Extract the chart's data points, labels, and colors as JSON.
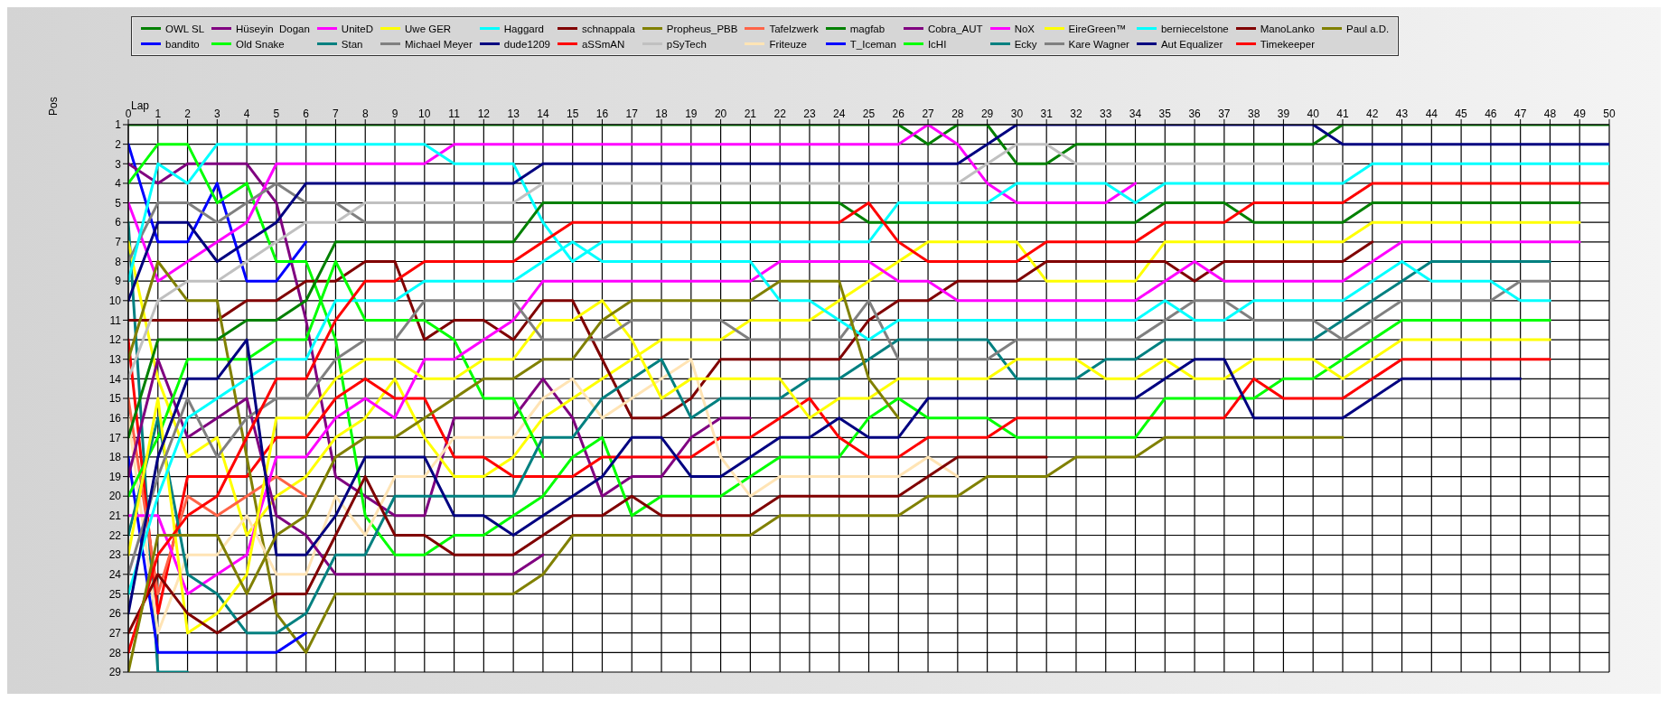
{
  "chart_data": {
    "type": "line",
    "xlabel": "Lap",
    "ylabel": "Pos",
    "legend": "top",
    "grid": true,
    "line_style": "solid",
    "x": [
      0,
      1,
      2,
      3,
      4,
      5,
      6,
      7,
      8,
      9,
      10,
      11,
      12,
      13,
      14,
      15,
      16,
      17,
      18,
      19,
      20,
      21,
      22,
      23,
      24,
      25,
      26,
      27,
      28,
      29,
      30,
      31,
      32,
      33,
      34,
      35,
      36,
      37,
      38,
      39,
      40,
      41,
      42,
      43,
      44,
      45,
      46,
      47,
      48,
      49,
      50
    ],
    "xlim": [
      0,
      50
    ],
    "xticks": [
      0,
      1,
      2,
      3,
      4,
      5,
      6,
      7,
      8,
      9,
      10,
      11,
      12,
      13,
      14,
      15,
      16,
      17,
      18,
      19,
      20,
      21,
      22,
      23,
      24,
      25,
      26,
      27,
      28,
      29,
      30,
      31,
      32,
      33,
      34,
      35,
      36,
      37,
      38,
      39,
      40,
      41,
      42,
      43,
      44,
      45,
      46,
      47,
      48,
      49,
      50
    ],
    "ylim": [
      29,
      1
    ],
    "yticks": [
      1,
      2,
      3,
      4,
      5,
      6,
      7,
      8,
      9,
      10,
      11,
      12,
      13,
      14,
      15,
      16,
      17,
      18,
      19,
      20,
      21,
      22,
      23,
      24,
      25,
      26,
      27,
      28,
      29
    ],
    "series": [
      {
        "name": "OWL SL",
        "color": "#008000",
        "values": [
          1,
          1,
          1,
          1,
          1,
          1,
          1,
          1,
          1,
          1,
          1,
          1,
          1,
          1,
          1,
          1,
          1,
          1,
          1,
          1,
          1,
          1,
          1,
          1,
          1,
          1,
          1,
          2,
          1,
          1,
          3,
          3,
          2,
          2,
          2,
          2,
          2,
          2,
          2,
          2,
          2,
          1,
          1,
          1,
          1,
          1,
          1,
          1,
          1,
          1,
          1
        ]
      },
      {
        "name": "bandito",
        "color": "#0000ff",
        "values": [
          2,
          7,
          7,
          4,
          9,
          9,
          7,
          null,
          null,
          null,
          null,
          null,
          null,
          null,
          null,
          null,
          null,
          null,
          null,
          null,
          null,
          null,
          null,
          null,
          null,
          null,
          null,
          null,
          null,
          null,
          null,
          null,
          null,
          null,
          null,
          null,
          null,
          null,
          null,
          null,
          null,
          null,
          null,
          null,
          null,
          null,
          null,
          null,
          null,
          null,
          null
        ]
      },
      {
        "name": "Hüseyin  Dogan",
        "color": "#800080",
        "values": [
          3,
          4,
          3,
          3,
          3,
          5,
          11,
          19,
          20,
          21,
          21,
          16,
          16,
          16,
          14,
          16,
          20,
          19,
          19,
          17,
          16,
          16,
          null,
          null,
          null,
          null,
          null,
          null,
          null,
          null,
          null,
          null,
          null,
          null,
          null,
          null,
          null,
          null,
          null,
          null,
          null,
          null,
          null,
          null,
          null,
          null,
          null,
          null,
          null,
          null,
          null
        ]
      },
      {
        "name": "Old Snake",
        "color": "#00ff00",
        "values": [
          4,
          2,
          2,
          5,
          4,
          8,
          8,
          12,
          21,
          23,
          23,
          22,
          22,
          21,
          20,
          18,
          17,
          21,
          20,
          20,
          20,
          19,
          18,
          18,
          18,
          16,
          15,
          16,
          16,
          16,
          17,
          17,
          17,
          17,
          17,
          15,
          15,
          15,
          15,
          14,
          14,
          13,
          12,
          11,
          11,
          11,
          11,
          11,
          11,
          null,
          null
        ]
      },
      {
        "name": "UniteD",
        "color": "#ff00ff",
        "values": [
          5,
          9,
          8,
          7,
          6,
          3,
          3,
          3,
          3,
          3,
          3,
          2,
          2,
          2,
          2,
          2,
          2,
          2,
          2,
          2,
          2,
          2,
          2,
          2,
          2,
          2,
          2,
          1,
          2,
          4,
          5,
          5,
          5,
          5,
          4,
          null,
          null,
          null,
          null,
          null,
          null,
          null,
          null,
          null,
          null,
          null,
          null,
          null,
          null,
          null,
          null
        ]
      },
      {
        "name": "Stan",
        "color": "#008080",
        "values": [
          6,
          29,
          29,
          null,
          null,
          null,
          null,
          null,
          null,
          null,
          null,
          null,
          null,
          null,
          null,
          null,
          null,
          null,
          null,
          null,
          null,
          null,
          null,
          null,
          null,
          null,
          null,
          null,
          null,
          null,
          null,
          null,
          null,
          null,
          null,
          null,
          null,
          null,
          null,
          null,
          null,
          null,
          null,
          null,
          null,
          null,
          null,
          null,
          null,
          null,
          null
        ]
      },
      {
        "name": "Uwe GER",
        "color": "#ffff00",
        "values": [
          7,
          14,
          18,
          17,
          22,
          20,
          19,
          17,
          16,
          14,
          17,
          19,
          19,
          18,
          16,
          15,
          14,
          13,
          12,
          12,
          12,
          11,
          11,
          11,
          10,
          9,
          8,
          7,
          7,
          7,
          7,
          9,
          9,
          9,
          9,
          7,
          7,
          7,
          7,
          7,
          7,
          7,
          6,
          6,
          6,
          6,
          6,
          6,
          6,
          6,
          null
        ]
      },
      {
        "name": "Michael Meyer",
        "color": "#808080",
        "values": [
          8,
          5,
          5,
          6,
          5,
          4,
          5,
          5,
          6,
          6,
          6,
          6,
          6,
          6,
          null,
          null,
          null,
          null,
          null,
          null,
          null,
          null,
          null,
          null,
          null,
          null,
          null,
          null,
          null,
          null,
          null,
          null,
          null,
          null,
          null,
          null,
          null,
          null,
          null,
          null,
          null,
          null,
          null,
          null,
          null,
          null,
          null,
          null,
          null,
          null,
          null
        ]
      },
      {
        "name": "Haggard",
        "color": "#00ffff",
        "values": [
          9,
          3,
          4,
          2,
          2,
          2,
          2,
          2,
          2,
          2,
          2,
          3,
          3,
          3,
          6,
          8,
          7,
          7,
          7,
          7,
          7,
          7,
          7,
          7,
          7,
          7,
          5,
          5,
          5,
          5,
          4,
          4,
          4,
          4,
          5,
          4,
          4,
          4,
          4,
          4,
          4,
          4,
          3,
          3,
          3,
          3,
          3,
          3,
          3,
          3,
          3
        ]
      },
      {
        "name": "dude1209",
        "color": "#000080",
        "values": [
          10,
          6,
          6,
          8,
          7,
          6,
          4,
          4,
          4,
          4,
          4,
          4,
          4,
          4,
          3,
          3,
          3,
          3,
          3,
          3,
          3,
          3,
          3,
          3,
          3,
          3,
          3,
          3,
          3,
          2,
          1,
          1,
          1,
          1,
          1,
          1,
          1,
          1,
          1,
          1,
          1,
          2,
          2,
          2,
          2,
          2,
          2,
          2,
          2,
          2,
          2
        ]
      },
      {
        "name": "schnappala",
        "color": "#800000",
        "values": [
          11,
          11,
          11,
          11,
          10,
          10,
          9,
          9,
          8,
          8,
          12,
          11,
          11,
          12,
          10,
          10,
          13,
          16,
          16,
          15,
          13,
          13,
          13,
          13,
          13,
          11,
          10,
          10,
          9,
          9,
          9,
          8,
          8,
          8,
          8,
          8,
          9,
          8,
          8,
          8,
          8,
          8,
          7,
          null,
          null,
          null,
          null,
          null,
          null,
          null,
          null
        ]
      },
      {
        "name": "aSSmAN",
        "color": "#ff0000",
        "values": [
          12,
          26,
          19,
          19,
          19,
          17,
          17,
          15,
          14,
          15,
          15,
          18,
          18,
          19,
          19,
          19,
          18,
          18,
          18,
          18,
          17,
          17,
          16,
          15,
          17,
          18,
          18,
          17,
          17,
          17,
          16,
          16,
          16,
          16,
          16,
          16,
          16,
          16,
          14,
          15,
          15,
          15,
          14,
          13,
          13,
          13,
          13,
          13,
          13,
          null,
          null
        ]
      },
      {
        "name": "Propheus_PBB",
        "color": "#808000",
        "values": [
          13,
          8,
          10,
          10,
          18,
          26,
          28,
          25,
          25,
          25,
          25,
          25,
          25,
          25,
          24,
          22,
          22,
          22,
          22,
          22,
          22,
          22,
          21,
          21,
          21,
          21,
          21,
          20,
          20,
          19,
          19,
          19,
          18,
          18,
          18,
          17,
          17,
          17,
          17,
          17,
          17,
          17,
          null,
          null,
          null,
          null,
          null,
          null,
          null,
          null,
          null
        ]
      },
      {
        "name": "pSyTech",
        "color": "#c0c0c0",
        "values": [
          14,
          10,
          9,
          9,
          8,
          7,
          6,
          6,
          5,
          5,
          5,
          5,
          5,
          5,
          4,
          4,
          4,
          4,
          4,
          4,
          4,
          4,
          4,
          4,
          4,
          4,
          4,
          4,
          4,
          3,
          2,
          2,
          3,
          3,
          3,
          3,
          3,
          3,
          3,
          3,
          3,
          3,
          null,
          null,
          null,
          null,
          null,
          null,
          null,
          null,
          null
        ]
      },
      {
        "name": "Tafelzwerk",
        "color": "#ff6347",
        "values": [
          15,
          25,
          20,
          21,
          20,
          19,
          20,
          null,
          null,
          null,
          null,
          null,
          null,
          null,
          null,
          null,
          null,
          null,
          null,
          null,
          null,
          null,
          null,
          null,
          null,
          null,
          null,
          null,
          null,
          null,
          null,
          null,
          null,
          null,
          null,
          null,
          null,
          null,
          null,
          null,
          null,
          null,
          null,
          null,
          null,
          null,
          null,
          null,
          null,
          null,
          null
        ]
      },
      {
        "name": "Friteuze",
        "color": "#ffe4b5",
        "values": [
          16,
          27,
          23,
          23,
          21,
          24,
          24,
          20,
          22,
          19,
          19,
          17,
          17,
          17,
          15,
          14,
          16,
          15,
          14,
          13,
          18,
          20,
          19,
          19,
          19,
          19,
          19,
          18,
          19,
          null,
          null,
          null,
          null,
          null,
          null,
          null,
          null,
          null,
          null,
          null,
          null,
          null,
          null,
          null,
          null,
          null,
          null,
          null,
          null,
          null,
          null
        ]
      },
      {
        "name": "magfab",
        "color": "#008000",
        "values": [
          17,
          12,
          12,
          12,
          11,
          11,
          10,
          7,
          7,
          7,
          7,
          7,
          7,
          7,
          5,
          5,
          5,
          5,
          5,
          5,
          5,
          5,
          5,
          5,
          5,
          6,
          6,
          6,
          6,
          6,
          6,
          6,
          6,
          6,
          6,
          5,
          5,
          5,
          6,
          6,
          6,
          6,
          5,
          5,
          5,
          5,
          5,
          5,
          5,
          5,
          null
        ]
      },
      {
        "name": "T_Iceman",
        "color": "#0000ff",
        "values": [
          18,
          28,
          28,
          28,
          28,
          28,
          27,
          null,
          null,
          null,
          null,
          null,
          null,
          null,
          null,
          null,
          null,
          null,
          null,
          null,
          null,
          null,
          null,
          null,
          null,
          null,
          null,
          null,
          null,
          null,
          null,
          null,
          null,
          null,
          null,
          null,
          null,
          null,
          null,
          null,
          null,
          null,
          null,
          null,
          null,
          null,
          null,
          null,
          null,
          null,
          null
        ]
      },
      {
        "name": "Cobra_AUT",
        "color": "#800080",
        "values": [
          19,
          13,
          17,
          16,
          15,
          21,
          22,
          24,
          24,
          24,
          24,
          24,
          24,
          24,
          23,
          null,
          null,
          null,
          null,
          null,
          null,
          null,
          null,
          null,
          null,
          null,
          null,
          null,
          null,
          null,
          null,
          null,
          null,
          null,
          null,
          null,
          null,
          null,
          null,
          null,
          null,
          null,
          null,
          null,
          null,
          null,
          null,
          null,
          null,
          null,
          null
        ]
      },
      {
        "name": "IcHI",
        "color": "#00ff00",
        "values": [
          20,
          17,
          13,
          13,
          13,
          12,
          12,
          8,
          11,
          11,
          11,
          12,
          15,
          15,
          18,
          null,
          null,
          null,
          null,
          null,
          null,
          null,
          null,
          null,
          null,
          null,
          null,
          null,
          null,
          null,
          null,
          null,
          null,
          null,
          null,
          null,
          null,
          null,
          null,
          null,
          null,
          null,
          null,
          null,
          null,
          null,
          null,
          null,
          null,
          null,
          null
        ]
      },
      {
        "name": "NoX",
        "color": "#ff00ff",
        "values": [
          21,
          21,
          25,
          24,
          23,
          18,
          18,
          16,
          15,
          16,
          13,
          13,
          12,
          11,
          9,
          9,
          9,
          9,
          9,
          9,
          9,
          9,
          8,
          8,
          8,
          8,
          9,
          9,
          10,
          10,
          10,
          10,
          10,
          10,
          10,
          9,
          8,
          9,
          9,
          9,
          9,
          9,
          8,
          7,
          7,
          7,
          7,
          7,
          7,
          7,
          null
        ]
      },
      {
        "name": "Ecky",
        "color": "#008080",
        "values": [
          22,
          16,
          24,
          25,
          27,
          27,
          26,
          23,
          23,
          20,
          20,
          20,
          20,
          20,
          17,
          17,
          15,
          14,
          13,
          16,
          15,
          15,
          15,
          14,
          14,
          13,
          12,
          12,
          12,
          12,
          14,
          14,
          14,
          13,
          13,
          12,
          12,
          12,
          12,
          12,
          12,
          11,
          10,
          9,
          8,
          8,
          8,
          8,
          8,
          null,
          null
        ]
      },
      {
        "name": "EireGreen™",
        "color": "#ffff00",
        "values": [
          23,
          15,
          27,
          26,
          24,
          16,
          16,
          14,
          13,
          13,
          14,
          14,
          13,
          13,
          11,
          11,
          10,
          12,
          15,
          14,
          14,
          14,
          14,
          16,
          15,
          15,
          14,
          14,
          14,
          14,
          13,
          13,
          13,
          14,
          14,
          13,
          14,
          14,
          13,
          13,
          13,
          14,
          13,
          12,
          12,
          12,
          12,
          12,
          12,
          null,
          null
        ]
      },
      {
        "name": "Kare Wagner",
        "color": "#808080",
        "values": [
          24,
          19,
          15,
          18,
          16,
          15,
          15,
          13,
          12,
          12,
          10,
          10,
          10,
          10,
          12,
          12,
          12,
          11,
          11,
          11,
          11,
          12,
          12,
          12,
          12,
          10,
          13,
          13,
          13,
          13,
          12,
          12,
          12,
          12,
          12,
          11,
          10,
          10,
          11,
          11,
          11,
          12,
          11,
          10,
          10,
          10,
          10,
          9,
          9,
          null,
          null
        ]
      },
      {
        "name": "berniecelstone",
        "color": "#00ffff",
        "values": [
          25,
          20,
          16,
          15,
          14,
          13,
          13,
          10,
          10,
          10,
          9,
          9,
          9,
          9,
          8,
          7,
          8,
          8,
          8,
          8,
          8,
          8,
          10,
          10,
          11,
          12,
          11,
          11,
          11,
          11,
          11,
          11,
          11,
          11,
          11,
          10,
          11,
          11,
          10,
          10,
          10,
          10,
          9,
          8,
          9,
          9,
          9,
          10,
          10,
          null,
          null
        ]
      },
      {
        "name": "Aut Equalizer",
        "color": "#000080",
        "values": [
          26,
          18,
          14,
          14,
          12,
          23,
          23,
          21,
          18,
          18,
          18,
          21,
          21,
          22,
          21,
          20,
          19,
          17,
          17,
          19,
          19,
          18,
          17,
          17,
          16,
          17,
          17,
          15,
          15,
          15,
          15,
          15,
          15,
          15,
          15,
          14,
          13,
          13,
          16,
          16,
          16,
          16,
          15,
          14,
          14,
          14,
          14,
          14,
          null,
          null,
          null
        ]
      },
      {
        "name": "ManoLanko",
        "color": "#800000",
        "values": [
          27,
          24,
          26,
          27,
          26,
          25,
          25,
          22,
          19,
          22,
          22,
          23,
          23,
          23,
          22,
          21,
          21,
          20,
          21,
          21,
          21,
          21,
          20,
          20,
          20,
          20,
          20,
          19,
          18,
          18,
          18,
          18,
          null,
          null,
          null,
          null,
          null,
          null,
          null,
          null,
          null,
          null,
          null,
          null,
          null,
          null,
          null,
          null,
          null,
          null,
          null
        ]
      },
      {
        "name": "Timekeeper",
        "color": "#ff0000",
        "values": [
          28,
          23,
          21,
          20,
          17,
          14,
          14,
          11,
          9,
          9,
          8,
          8,
          8,
          8,
          7,
          6,
          6,
          6,
          6,
          6,
          6,
          6,
          6,
          6,
          6,
          5,
          7,
          8,
          8,
          8,
          8,
          7,
          7,
          7,
          7,
          6,
          6,
          6,
          5,
          5,
          5,
          5,
          4,
          4,
          4,
          4,
          4,
          4,
          4,
          4,
          4
        ]
      },
      {
        "name": "Paul a.D.",
        "color": "#808000",
        "values": [
          29,
          22,
          22,
          22,
          25,
          22,
          21,
          18,
          17,
          17,
          16,
          15,
          14,
          14,
          13,
          13,
          11,
          10,
          10,
          10,
          10,
          10,
          9,
          9,
          9,
          14,
          16,
          null,
          null,
          null,
          null,
          null,
          null,
          null,
          null,
          null,
          null,
          null,
          null,
          null,
          null,
          null,
          null,
          null,
          null,
          null,
          null,
          null,
          null,
          null,
          null
        ]
      }
    ]
  }
}
